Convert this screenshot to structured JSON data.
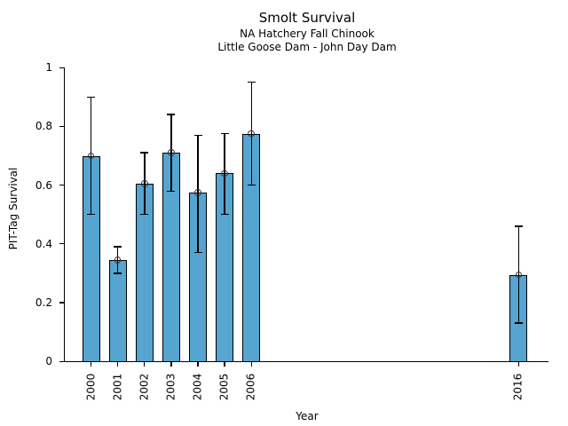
{
  "chart_data": {
    "type": "bar",
    "title": "Smolt Survival",
    "subtitle1": "NA Hatchery Fall Chinook",
    "subtitle2": "Little Goose Dam - John Day Dam",
    "xlabel": "Year",
    "ylabel": "PIT-Tag Survival",
    "categories": [
      "2000",
      "2001",
      "2002",
      "2003",
      "2004",
      "2005",
      "2006",
      "2016"
    ],
    "x_years": [
      2000,
      2001,
      2002,
      2003,
      2004,
      2005,
      2006,
      2016
    ],
    "values": [
      0.7,
      0.345,
      0.605,
      0.71,
      0.575,
      0.64,
      0.775,
      0.295
    ],
    "error_low": [
      0.5,
      0.3,
      0.5,
      0.58,
      0.37,
      0.5,
      0.6,
      0.13
    ],
    "error_high": [
      0.9,
      0.39,
      0.71,
      0.84,
      0.77,
      0.775,
      0.95,
      0.46
    ],
    "xlim": [
      1999,
      2017.13
    ],
    "ylim": [
      0,
      1
    ],
    "ytick_values": [
      0,
      0.2,
      0.4,
      0.6,
      0.8,
      1
    ],
    "ytick_labels": [
      "0",
      "0.2",
      "0.4",
      "0.6",
      "0.8",
      "1"
    ],
    "grid": false,
    "legend": null,
    "marker": "open-circle",
    "bar_color": "#56A4D0",
    "bar_edge_color": "#000000",
    "errorbar_color": "#000000"
  }
}
